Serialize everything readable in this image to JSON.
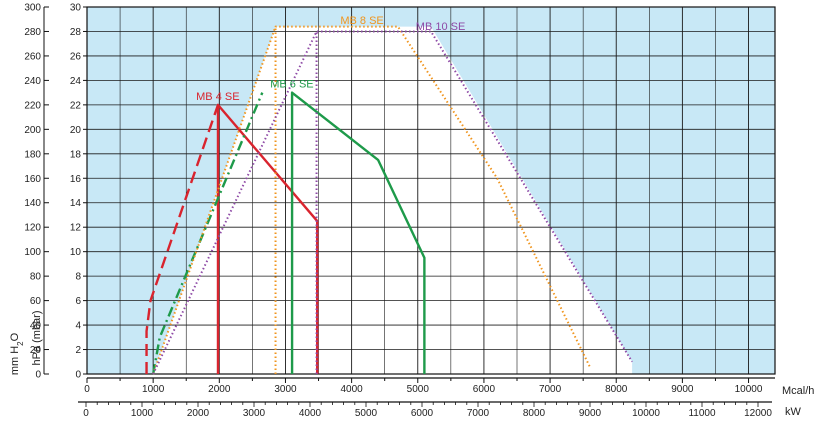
{
  "chart_data": {
    "type": "line",
    "title": "",
    "axes": {
      "y_outer": {
        "label": "mm H2O",
        "label_main": "mm H",
        "label_sub": "2",
        "label_tail": "O",
        "min": 0,
        "max": 300,
        "step": 20,
        "ticks": [
          "0",
          "20",
          "40",
          "60",
          "80",
          "100",
          "120",
          "140",
          "160",
          "180",
          "200",
          "220",
          "240",
          "260",
          "280",
          "300"
        ]
      },
      "y_inner": {
        "label": "hPa (mbar)",
        "min": 0,
        "max": 30,
        "step": 2,
        "ticks": [
          "0",
          "2",
          "4",
          "6",
          "8",
          "10",
          "12",
          "14",
          "16",
          "18",
          "20",
          "22",
          "24",
          "26",
          "28",
          "30"
        ]
      },
      "x_top": {
        "label": "Mcal/h",
        "min": 0,
        "max": 10400,
        "ticks": [
          "0",
          "1000",
          "2000",
          "3000",
          "4000",
          "5000",
          "6000",
          "7000",
          "8000",
          "9000",
          "10000"
        ]
      },
      "x_bottom": {
        "label": "kW",
        "min": 0,
        "max": 12100,
        "ticks": [
          "0",
          "1000",
          "2000",
          "3000",
          "4000",
          "5000",
          "6000",
          "7000",
          "8000",
          "9000",
          "10000",
          "11000",
          "12000"
        ]
      }
    },
    "grid": true,
    "background_fill": "#c8e8f6",
    "plot_area_fill": "#ffffff",
    "series": [
      {
        "name": "MB 4 SE",
        "color": "#d9242e",
        "label_at": [
          1650,
          22.4
        ],
        "segments": [
          {
            "style": "dashed",
            "points": [
              [
                900,
                0
              ],
              [
                900,
                3.5
              ],
              [
                960,
                6
              ],
              [
                1980,
                22
              ]
            ]
          },
          {
            "style": "solid",
            "points": [
              [
                1980,
                0
              ],
              [
                1980,
                22
              ],
              [
                3480,
                12.5
              ],
              [
                3480,
                0
              ]
            ]
          }
        ]
      },
      {
        "name": "MB 6 SE",
        "color": "#1e9a4a",
        "label_at": [
          2770,
          23.4
        ],
        "segments": [
          {
            "style": "dashdot",
            "points": [
              [
                1000,
                0
              ],
              [
                1100,
                3
              ],
              [
                2650,
                23
              ]
            ]
          },
          {
            "style": "solid",
            "points": [
              [
                3100,
                0
              ],
              [
                3100,
                23
              ],
              [
                4400,
                17.5
              ],
              [
                5100,
                9.5
              ],
              [
                5100,
                0
              ]
            ]
          }
        ]
      },
      {
        "name": "MB 8 SE",
        "color": "#f0951e",
        "label_at": [
          3830,
          28.6
        ],
        "segments": [
          {
            "style": "dotted",
            "points": [
              [
                1000,
                0
              ],
              [
                2850,
                28.4
              ],
              [
                4700,
                28.4
              ],
              [
                6200,
                16
              ],
              [
                7600,
                0.6
              ]
            ]
          },
          {
            "style": "dotted",
            "points": [
              [
                2850,
                0
              ],
              [
                2850,
                28.4
              ]
            ]
          }
        ]
      },
      {
        "name": "MB 10 SE",
        "color": "#8e4aa6",
        "label_at": [
          4970,
          28.1
        ],
        "segments": [
          {
            "style": "dotted",
            "points": [
              [
                1000,
                0
              ],
              [
                3470,
                28
              ],
              [
                5200,
                28
              ],
              [
                8240,
                1
              ]
            ]
          },
          {
            "style": "dotted",
            "points": [
              [
                3470,
                0
              ],
              [
                3470,
                28
              ]
            ]
          }
        ]
      }
    ],
    "envelope": [
      [
        1000,
        0
      ],
      [
        2850,
        28.4
      ],
      [
        5200,
        28.4
      ],
      [
        8240,
        1
      ],
      [
        8240,
        0
      ]
    ]
  }
}
